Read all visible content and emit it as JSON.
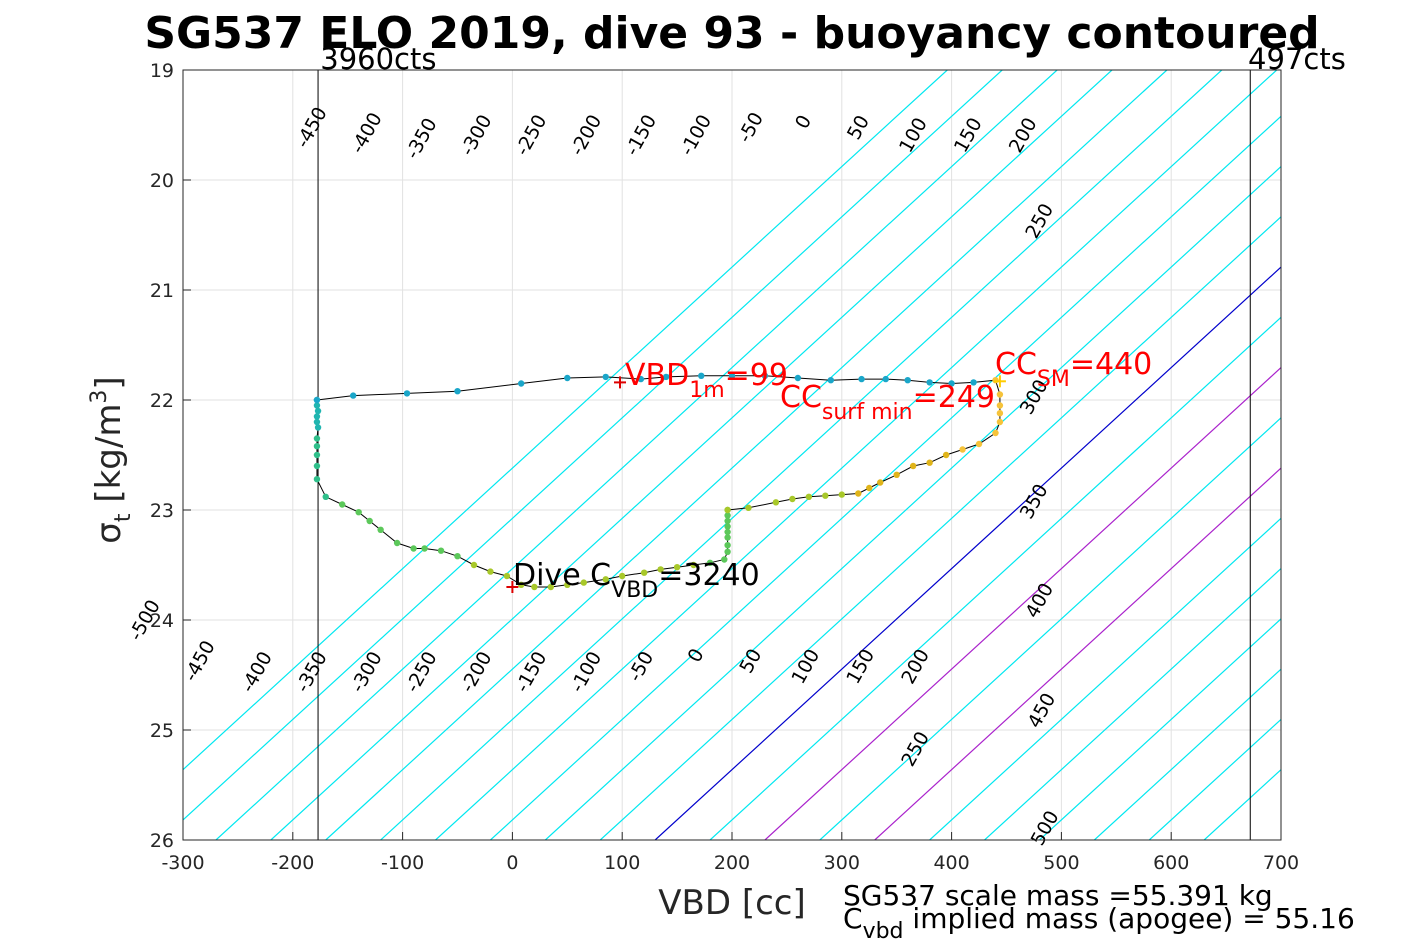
{
  "chart_data": {
    "type": "scatter",
    "title": "SG537 ELO 2019, dive 93 - buoyancy contoured",
    "xlabel": "VBD [cc]",
    "ylabel": {
      "base": "σ",
      "sub": "t",
      "rest": " [kg/m",
      "sup": "3",
      "close": "]"
    },
    "xlim": [
      -300,
      700
    ],
    "ylim": [
      19,
      26
    ],
    "y_reversed": true,
    "grid": true,
    "x_ticks": [
      -300,
      -200,
      -100,
      0,
      100,
      200,
      300,
      400,
      500,
      600,
      700
    ],
    "y_ticks": [
      19,
      20,
      21,
      22,
      23,
      24,
      25,
      26
    ],
    "contour_slope_cc_per_sigma": 34.2,
    "contours": {
      "levels": [
        -500,
        -450,
        -400,
        -350,
        -300,
        -250,
        -200,
        -150,
        -100,
        -50,
        0,
        50,
        100,
        150,
        200,
        250,
        300,
        350,
        400,
        450,
        500
      ],
      "cc_per_level_step": 1.0,
      "offset_cc": 350,
      "zero_color": "#0000cc",
      "highlight_levels": [
        100,
        200
      ],
      "highlight_color": "#aa22cc",
      "default_color": "#00e8f0"
    },
    "contour_labels": [
      {
        "text": "-450",
        "x": -178,
        "y": 19.55
      },
      {
        "text": "-400",
        "x": -128,
        "y": 19.6
      },
      {
        "text": "-350",
        "x": -78,
        "y": 19.65
      },
      {
        "text": "-300",
        "x": -28,
        "y": 19.62
      },
      {
        "text": "-250",
        "x": 22,
        "y": 19.62
      },
      {
        "text": "-200",
        "x": 72,
        "y": 19.62
      },
      {
        "text": "-150",
        "x": 122,
        "y": 19.62
      },
      {
        "text": "-100",
        "x": 172,
        "y": 19.62
      },
      {
        "text": "-50",
        "x": 222,
        "y": 19.55
      },
      {
        "text": "0",
        "x": 270,
        "y": 19.5
      },
      {
        "text": "50",
        "x": 320,
        "y": 19.55
      },
      {
        "text": "100",
        "x": 370,
        "y": 19.62
      },
      {
        "text": "150",
        "x": 420,
        "y": 19.62
      },
      {
        "text": "200",
        "x": 470,
        "y": 19.62
      },
      {
        "text": "250",
        "x": 485,
        "y": 20.4
      },
      {
        "text": "300",
        "x": 480,
        "y": 22.0
      },
      {
        "text": "350",
        "x": 480,
        "y": 22.95
      },
      {
        "text": "400",
        "x": 485,
        "y": 23.85
      },
      {
        "text": "450",
        "x": 487,
        "y": 24.85
      },
      {
        "text": "500",
        "x": 490,
        "y": 25.92
      },
      {
        "text": "-500",
        "x": -330,
        "y": 24.03
      },
      {
        "text": "-450",
        "x": -280,
        "y": 24.4
      },
      {
        "text": "-400",
        "x": -228,
        "y": 24.5
      },
      {
        "text": "-350",
        "x": -178,
        "y": 24.5
      },
      {
        "text": "-300",
        "x": -128,
        "y": 24.5
      },
      {
        "text": "-250",
        "x": -78,
        "y": 24.5
      },
      {
        "text": "-200",
        "x": -28,
        "y": 24.5
      },
      {
        "text": "-150",
        "x": 22,
        "y": 24.5
      },
      {
        "text": "-100",
        "x": 72,
        "y": 24.5
      },
      {
        "text": "-50",
        "x": 122,
        "y": 24.45
      },
      {
        "text": "0",
        "x": 172,
        "y": 24.35
      },
      {
        "text": "50",
        "x": 222,
        "y": 24.4
      },
      {
        "text": "100",
        "x": 272,
        "y": 24.45
      },
      {
        "text": "150",
        "x": 322,
        "y": 24.45
      },
      {
        "text": "200",
        "x": 372,
        "y": 24.45
      },
      {
        "text": "250",
        "x": 372,
        "y": 25.2
      }
    ],
    "vertical_limits": [
      {
        "x": -177,
        "label": "3960cts",
        "label_x": -175
      },
      {
        "x": 672,
        "label": "497cts",
        "label_x": 670
      }
    ],
    "series": [
      {
        "x": [
          -178,
          -178,
          -177,
          -178,
          -178,
          -177,
          -178,
          -178,
          -178,
          -178,
          -178,
          -170,
          -155,
          -140,
          -130,
          -120,
          -105,
          -90,
          -80,
          -65,
          -50,
          -35,
          -20,
          -5,
          8,
          20,
          35,
          50,
          65,
          85,
          100,
          120,
          135,
          150,
          165,
          180,
          193,
          196,
          196,
          196,
          196,
          196,
          196,
          196,
          196
        ],
        "y": [
          22.0,
          22.05,
          22.1,
          22.15,
          22.2,
          22.25,
          22.35,
          22.42,
          22.5,
          22.6,
          22.72,
          22.88,
          22.95,
          23.02,
          23.1,
          23.18,
          23.3,
          23.35,
          23.35,
          23.37,
          23.42,
          23.5,
          23.56,
          23.6,
          23.68,
          23.7,
          23.7,
          23.68,
          23.66,
          23.63,
          23.6,
          23.57,
          23.54,
          23.52,
          23.5,
          23.48,
          23.45,
          23.38,
          23.32,
          23.25,
          23.2,
          23.15,
          23.1,
          23.05,
          23.0
        ]
      },
      {
        "x": [
          196,
          215,
          240,
          255,
          270,
          285,
          300,
          315,
          325,
          335,
          350,
          365,
          380,
          395,
          410,
          425,
          440,
          444,
          444,
          444,
          444,
          440,
          420,
          400,
          380,
          360,
          340,
          318,
          290,
          260,
          230,
          200,
          172,
          140,
          117,
          85,
          50,
          8,
          -50,
          -96,
          -145,
          -178
        ],
        "y": [
          23.0,
          22.98,
          22.93,
          22.9,
          22.88,
          22.87,
          22.86,
          22.85,
          22.8,
          22.75,
          22.68,
          22.6,
          22.57,
          22.5,
          22.45,
          22.4,
          22.3,
          22.2,
          22.12,
          22.05,
          21.95,
          21.82,
          21.84,
          21.85,
          21.84,
          21.82,
          21.81,
          21.81,
          21.82,
          21.8,
          21.78,
          21.78,
          21.78,
          21.79,
          21.81,
          21.79,
          21.8,
          21.85,
          21.92,
          21.94,
          21.96,
          22.0
        ]
      }
    ],
    "markers": [
      {
        "x": 0,
        "y": 23.7,
        "color": "#dd0000"
      },
      {
        "x": 98,
        "y": 21.84,
        "color": "#dd0000"
      },
      {
        "x": 444,
        "y": 21.83,
        "color": "#ffcc00"
      }
    ],
    "annotations": {
      "dive": {
        "base": "Dive C",
        "sub": "VBD",
        "rest": "=3240"
      },
      "vbd1m": {
        "base": "VBD",
        "sub": "1m",
        "rest": "=99"
      },
      "ccsurf": {
        "base": "CC",
        "sub": "surf min",
        "rest": "=249"
      },
      "ccsm": {
        "base": "CC",
        "sub": "SM",
        "rest": "=440"
      }
    },
    "footer": {
      "line1": "SG537 scale mass =55.391 kg",
      "line2": {
        "base": "C",
        "sub": "vbd",
        "rest": " implied mass (apogee) = 55.16"
      }
    }
  }
}
